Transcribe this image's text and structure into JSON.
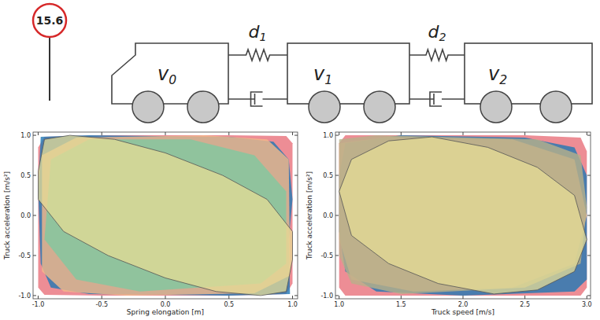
{
  "diagram": {
    "sign": "15.6",
    "vehicles": [
      {
        "symbol": "v",
        "subscript": "0"
      },
      {
        "symbol": "v",
        "subscript": "1"
      },
      {
        "symbol": "v",
        "subscript": "2"
      }
    ],
    "links": [
      {
        "symbol": "d",
        "subscript": "1"
      },
      {
        "symbol": "d",
        "subscript": "2"
      }
    ]
  },
  "chart_data": [
    {
      "type": "area",
      "x_label": "Spring elongation [m]",
      "y_label": "Truck acceleration [m/s²]",
      "xlim": [
        -1.04,
        1.04
      ],
      "ylim": [
        -1.04,
        1.04
      ],
      "grid": false,
      "xticks": [
        {
          "value": -1,
          "label": "-1.0"
        },
        {
          "value": -0.5,
          "label": "-0.5"
        },
        {
          "value": 0,
          "label": "0.0"
        },
        {
          "value": 0.5,
          "label": "0.5"
        },
        {
          "value": 1,
          "label": "1.0"
        }
      ],
      "yticks": [
        {
          "value": -1,
          "label": "-1.0"
        },
        {
          "value": -0.5,
          "label": "-0.5"
        },
        {
          "value": 0,
          "label": "0.0"
        },
        {
          "value": 0.5,
          "label": "0.5"
        },
        {
          "value": 1,
          "label": "1.0"
        }
      ],
      "series": [
        {
          "color": "#e8707a",
          "x": [
            -1.0,
            -0.95,
            -0.5,
            0.5,
            0.95,
            1.0,
            1.0,
            0.95,
            0.5,
            -0.5,
            -0.95,
            -1.0
          ],
          "values": [
            0.85,
            0.98,
            1.0,
            1.0,
            0.99,
            0.9,
            -0.85,
            -0.98,
            -1.0,
            -1.0,
            -0.99,
            -0.9
          ]
        },
        {
          "color": "#1f78b4",
          "x": [
            -0.98,
            -0.6,
            0.5,
            0.85,
            0.97,
            1.0,
            0.97,
            0.98,
            0.5,
            -0.6,
            -0.9,
            -0.98,
            -1.0
          ],
          "values": [
            0.98,
            1.0,
            0.98,
            0.92,
            0.7,
            0.2,
            -0.3,
            -0.98,
            -1.0,
            -0.98,
            -0.9,
            -0.6,
            0.3
          ]
        },
        {
          "color": "#f5b98a",
          "x": [
            -0.97,
            -0.7,
            0.3,
            0.8,
            0.97,
            0.98,
            0.7,
            -0.3,
            -0.8,
            -0.97
          ],
          "values": [
            0.75,
            0.97,
            1.0,
            0.95,
            0.7,
            -0.75,
            -0.97,
            -1.0,
            -0.95,
            -0.7
          ]
        },
        {
          "color": "#7fc8a0",
          "x": [
            -0.9,
            -0.6,
            0.2,
            0.7,
            0.95,
            0.95,
            0.75,
            -0.2,
            -0.7,
            -0.95
          ],
          "values": [
            0.7,
            0.95,
            0.95,
            0.75,
            0.3,
            -0.6,
            -0.85,
            -0.95,
            -0.8,
            -0.3
          ]
        },
        {
          "color": "#e6dc96",
          "x": [
            -1.0,
            -0.95,
            -0.75,
            -0.4,
            0.0,
            0.45,
            0.8,
            1.0,
            1.0,
            0.95,
            0.75,
            0.4,
            0.0,
            -0.45,
            -0.8,
            -1.0
          ],
          "values": [
            0.55,
            0.95,
            1.0,
            0.95,
            0.78,
            0.5,
            0.2,
            -0.2,
            -0.55,
            -0.95,
            -1.0,
            -0.95,
            -0.78,
            -0.5,
            -0.2,
            0.2
          ]
        }
      ]
    },
    {
      "type": "area",
      "x_label": "Truck speed [m/s]",
      "y_label": "Truck acceleration [m/s²]",
      "xlim": [
        0.97,
        3.03
      ],
      "ylim": [
        -1.04,
        1.04
      ],
      "grid": false,
      "xticks": [
        {
          "value": 1,
          "label": "1.0"
        },
        {
          "value": 1.5,
          "label": "1.5"
        },
        {
          "value": 2,
          "label": "2.0"
        },
        {
          "value": 2.5,
          "label": "2.5"
        },
        {
          "value": 3,
          "label": "3.0"
        }
      ],
      "yticks": [
        {
          "value": -1,
          "label": "-1.0"
        },
        {
          "value": -0.5,
          "label": "-0.5"
        },
        {
          "value": 0,
          "label": "0.0"
        },
        {
          "value": 0.5,
          "label": "0.5"
        },
        {
          "value": 1,
          "label": "1.0"
        }
      ],
      "series": [
        {
          "color": "#e8707a",
          "x": [
            1.0,
            1.05,
            1.5,
            2.5,
            2.95,
            3.0,
            3.0,
            2.95,
            2.0,
            1.05,
            1.0
          ],
          "values": [
            0.9,
            1.0,
            1.0,
            1.0,
            0.97,
            0.8,
            -0.9,
            -1.0,
            -1.0,
            -1.0,
            -0.9
          ]
        },
        {
          "color": "#1f78b4",
          "x": [
            1.0,
            1.05,
            1.5,
            2.5,
            2.9,
            3.0,
            3.0,
            2.9,
            2.0,
            1.3,
            1.05,
            1.0
          ],
          "values": [
            0.5,
            0.9,
            1.0,
            0.97,
            0.85,
            0.5,
            -0.8,
            -0.95,
            -1.0,
            -0.95,
            -0.7,
            -0.2
          ]
        },
        {
          "color": "#f5b98a",
          "x": [
            1.0,
            1.4,
            2.4,
            2.9,
            3.0,
            2.9,
            2.4,
            1.6,
            1.1,
            1.0
          ],
          "values": [
            0.9,
            0.98,
            0.95,
            0.7,
            0.0,
            -0.6,
            -0.9,
            -0.95,
            -0.8,
            -0.3
          ]
        },
        {
          "color": "#b8b08a",
          "x": [
            1.0,
            1.3,
            2.6,
            2.95,
            3.0,
            2.95,
            2.5,
            1.5,
            1.1,
            1.0
          ],
          "values": [
            0.95,
            1.0,
            0.95,
            0.75,
            0.1,
            -0.6,
            -0.9,
            -0.98,
            -0.85,
            -0.5
          ]
        },
        {
          "color": "#e6dc96",
          "x": [
            1.0,
            1.1,
            1.4,
            1.75,
            2.2,
            2.6,
            2.9,
            3.0,
            2.9,
            2.6,
            2.25,
            1.8,
            1.4,
            1.1
          ],
          "values": [
            0.3,
            0.7,
            0.93,
            0.98,
            0.85,
            0.6,
            0.25,
            -0.3,
            -0.7,
            -0.93,
            -0.98,
            -0.85,
            -0.6,
            -0.25
          ]
        }
      ]
    }
  ]
}
